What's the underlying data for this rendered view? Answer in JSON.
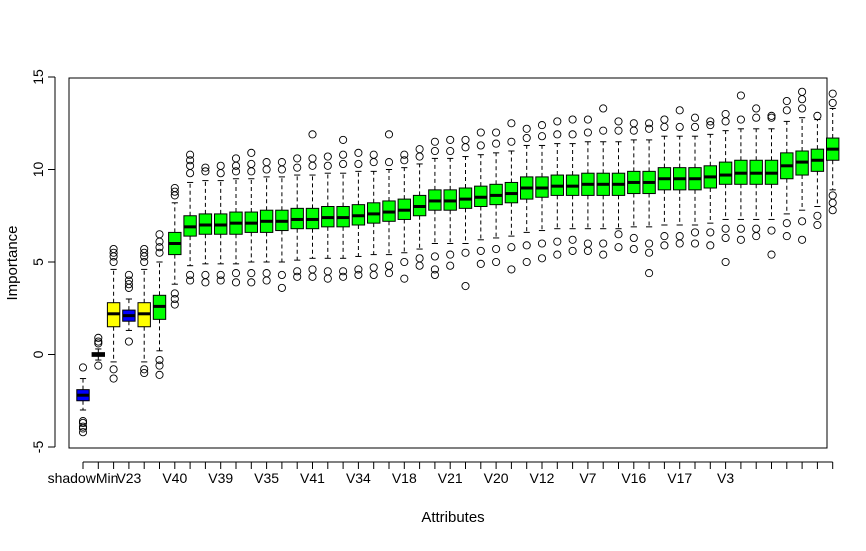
{
  "chart_data": {
    "type": "boxplot",
    "title": "",
    "xlabel": "Attributes",
    "ylabel": "Importance",
    "ylim": [
      -5,
      15
    ],
    "yticks": [
      -5,
      0,
      5,
      10,
      15
    ],
    "grid": false,
    "legend": "none",
    "colors": {
      "shadow": "#0000ff",
      "tentative": "#ffff00",
      "confirmed": "#00ff00",
      "outline": "#000000"
    },
    "x_tick_labels": [
      "shadowMin",
      "V23",
      "V40",
      "V39",
      "V35",
      "V41",
      "V34",
      "V18",
      "V21",
      "V20",
      "V12",
      "V7",
      "V16",
      "V17",
      "V3"
    ],
    "x_tick_positions": [
      1,
      4,
      7,
      10,
      13,
      16,
      19,
      22,
      25,
      28,
      31,
      34,
      37,
      40,
      43
    ],
    "boxes": [
      {
        "pos": 1,
        "status": "shadow",
        "q1": -2.5,
        "med": -2.2,
        "q3": -1.9,
        "lo": -3.0,
        "hi": -1.3,
        "out": [
          -3.6,
          -3.7,
          -3.9,
          -4.0,
          -4.2,
          -0.7
        ]
      },
      {
        "pos": 2,
        "status": "shadow",
        "q1": -0.1,
        "med": 0.0,
        "q3": 0.1,
        "lo": -0.3,
        "hi": 0.3,
        "out": [
          0.6,
          0.9,
          0.7,
          -0.6
        ]
      },
      {
        "pos": 3,
        "status": "tentative",
        "q1": 1.5,
        "med": 2.2,
        "q3": 2.8,
        "lo": -0.4,
        "hi": 4.6,
        "out": [
          5.0,
          5.3,
          5.5,
          5.7,
          -0.8,
          -1.3
        ]
      },
      {
        "pos": 4,
        "status": "shadow",
        "q1": 1.8,
        "med": 2.1,
        "q3": 2.4,
        "lo": 1.3,
        "hi": 3.0,
        "out": [
          3.6,
          3.8,
          4.0,
          4.3,
          0.7
        ]
      },
      {
        "pos": 5,
        "status": "tentative",
        "q1": 1.5,
        "med": 2.2,
        "q3": 2.8,
        "lo": -0.4,
        "hi": 4.6,
        "out": [
          5.0,
          5.3,
          5.5,
          5.7,
          -0.8,
          -1.0
        ]
      },
      {
        "pos": 6,
        "status": "confirmed",
        "q1": 1.9,
        "med": 2.6,
        "q3": 3.2,
        "lo": 0.2,
        "hi": 5.0,
        "out": [
          5.5,
          5.8,
          6.1,
          6.5,
          -0.3,
          -0.6,
          -1.1
        ]
      },
      {
        "pos": 7,
        "status": "confirmed",
        "q1": 5.4,
        "med": 6.0,
        "q3": 6.6,
        "lo": 3.8,
        "hi": 8.2,
        "out": [
          8.6,
          8.8,
          9.0,
          3.3,
          3.0,
          2.7
        ]
      },
      {
        "pos": 8,
        "status": "confirmed",
        "q1": 6.4,
        "med": 6.9,
        "q3": 7.5,
        "lo": 4.8,
        "hi": 9.3,
        "out": [
          9.8,
          10.2,
          10.5,
          10.8,
          4.3,
          4.0
        ]
      },
      {
        "pos": 9,
        "status": "confirmed",
        "q1": 6.5,
        "med": 7.0,
        "q3": 7.6,
        "lo": 4.9,
        "hi": 9.4,
        "out": [
          9.9,
          10.1,
          4.3,
          3.9
        ]
      },
      {
        "pos": 10,
        "status": "confirmed",
        "q1": 6.5,
        "med": 7.0,
        "q3": 7.6,
        "lo": 4.9,
        "hi": 9.4,
        "out": [
          9.8,
          10.2,
          4.3,
          4.0
        ]
      },
      {
        "pos": 11,
        "status": "confirmed",
        "q1": 6.5,
        "med": 7.1,
        "q3": 7.7,
        "lo": 4.9,
        "hi": 9.5,
        "out": [
          9.9,
          10.2,
          10.6,
          4.4,
          3.9
        ]
      },
      {
        "pos": 12,
        "status": "confirmed",
        "q1": 6.6,
        "med": 7.1,
        "q3": 7.7,
        "lo": 5.0,
        "hi": 9.5,
        "out": [
          9.9,
          10.3,
          10.9,
          4.4,
          3.9
        ]
      },
      {
        "pos": 13,
        "status": "confirmed",
        "q1": 6.6,
        "med": 7.2,
        "q3": 7.8,
        "lo": 5.0,
        "hi": 9.6,
        "out": [
          10.0,
          10.4,
          4.4,
          4.0
        ]
      },
      {
        "pos": 14,
        "status": "confirmed",
        "q1": 6.7,
        "med": 7.2,
        "q3": 7.8,
        "lo": 5.0,
        "hi": 9.6,
        "out": [
          10.0,
          10.4,
          4.3,
          3.6
        ]
      },
      {
        "pos": 15,
        "status": "confirmed",
        "q1": 6.8,
        "med": 7.3,
        "q3": 7.9,
        "lo": 5.1,
        "hi": 9.7,
        "out": [
          10.1,
          10.6,
          4.5,
          4.2
        ]
      },
      {
        "pos": 16,
        "status": "confirmed",
        "q1": 6.8,
        "med": 7.3,
        "q3": 7.9,
        "lo": 5.2,
        "hi": 9.7,
        "out": [
          10.2,
          10.6,
          11.9,
          4.6,
          4.2
        ]
      },
      {
        "pos": 17,
        "status": "confirmed",
        "q1": 6.9,
        "med": 7.4,
        "q3": 8.0,
        "lo": 5.2,
        "hi": 9.8,
        "out": [
          10.2,
          10.7,
          4.5,
          4.1
        ]
      },
      {
        "pos": 18,
        "status": "confirmed",
        "q1": 6.9,
        "med": 7.4,
        "q3": 8.0,
        "lo": 5.2,
        "hi": 9.8,
        "out": [
          10.3,
          10.8,
          11.6,
          4.5,
          4.2
        ]
      },
      {
        "pos": 19,
        "status": "confirmed",
        "q1": 7.0,
        "med": 7.5,
        "q3": 8.1,
        "lo": 5.3,
        "hi": 9.9,
        "out": [
          10.3,
          10.9,
          4.6,
          4.3
        ]
      },
      {
        "pos": 20,
        "status": "confirmed",
        "q1": 7.1,
        "med": 7.6,
        "q3": 8.2,
        "lo": 5.4,
        "hi": 9.9,
        "out": [
          10.4,
          10.8,
          4.7,
          4.3
        ]
      },
      {
        "pos": 21,
        "status": "confirmed",
        "q1": 7.2,
        "med": 7.7,
        "q3": 8.3,
        "lo": 5.4,
        "hi": 10.0,
        "out": [
          10.4,
          11.9,
          4.8,
          4.4
        ]
      },
      {
        "pos": 22,
        "status": "confirmed",
        "q1": 7.3,
        "med": 7.8,
        "q3": 8.4,
        "lo": 5.5,
        "hi": 10.1,
        "out": [
          10.5,
          10.8,
          5.0,
          4.1
        ]
      },
      {
        "pos": 23,
        "status": "confirmed",
        "q1": 7.5,
        "med": 8.0,
        "q3": 8.6,
        "lo": 5.7,
        "hi": 10.3,
        "out": [
          10.7,
          11.1,
          5.2,
          4.8
        ]
      },
      {
        "pos": 24,
        "status": "confirmed",
        "q1": 7.8,
        "med": 8.3,
        "q3": 8.9,
        "lo": 6.0,
        "hi": 10.6,
        "out": [
          11.0,
          11.5,
          5.3,
          4.6,
          4.3
        ]
      },
      {
        "pos": 25,
        "status": "confirmed",
        "q1": 7.8,
        "med": 8.3,
        "q3": 8.9,
        "lo": 6.0,
        "hi": 10.6,
        "out": [
          11.0,
          11.6,
          5.4,
          4.8
        ]
      },
      {
        "pos": 26,
        "status": "confirmed",
        "q1": 7.9,
        "med": 8.4,
        "q3": 9.0,
        "lo": 6.0,
        "hi": 10.7,
        "out": [
          11.2,
          11.6,
          5.5,
          3.7
        ]
      },
      {
        "pos": 27,
        "status": "confirmed",
        "q1": 8.0,
        "med": 8.5,
        "q3": 9.1,
        "lo": 6.2,
        "hi": 10.8,
        "out": [
          11.3,
          12.0,
          5.6,
          4.9
        ]
      },
      {
        "pos": 28,
        "status": "confirmed",
        "q1": 8.1,
        "med": 8.6,
        "q3": 9.2,
        "lo": 6.3,
        "hi": 10.9,
        "out": [
          11.4,
          12.0,
          5.7,
          5.0
        ]
      },
      {
        "pos": 29,
        "status": "confirmed",
        "q1": 8.2,
        "med": 8.7,
        "q3": 9.3,
        "lo": 6.4,
        "hi": 11.0,
        "out": [
          11.5,
          12.5,
          5.8,
          4.6
        ]
      },
      {
        "pos": 30,
        "status": "confirmed",
        "q1": 8.4,
        "med": 9.0,
        "q3": 9.6,
        "lo": 6.6,
        "hi": 11.3,
        "out": [
          11.7,
          12.2,
          5.9,
          5.0
        ]
      },
      {
        "pos": 31,
        "status": "confirmed",
        "q1": 8.5,
        "med": 9.0,
        "q3": 9.6,
        "lo": 6.7,
        "hi": 11.3,
        "out": [
          11.8,
          12.4,
          6.0,
          5.2
        ]
      },
      {
        "pos": 32,
        "status": "confirmed",
        "q1": 8.6,
        "med": 9.1,
        "q3": 9.7,
        "lo": 6.8,
        "hi": 11.4,
        "out": [
          11.9,
          12.6,
          6.1,
          5.4
        ]
      },
      {
        "pos": 33,
        "status": "confirmed",
        "q1": 8.6,
        "med": 9.1,
        "q3": 9.7,
        "lo": 6.8,
        "hi": 11.4,
        "out": [
          11.9,
          12.7,
          6.2,
          5.6
        ]
      },
      {
        "pos": 34,
        "status": "confirmed",
        "q1": 8.6,
        "med": 9.2,
        "q3": 9.8,
        "lo": 6.8,
        "hi": 11.5,
        "out": [
          12.0,
          12.7,
          6.0,
          5.6
        ]
      },
      {
        "pos": 35,
        "status": "confirmed",
        "q1": 8.6,
        "med": 9.2,
        "q3": 9.8,
        "lo": 6.8,
        "hi": 11.5,
        "out": [
          12.1,
          13.3,
          6.0,
          5.4
        ]
      },
      {
        "pos": 36,
        "status": "confirmed",
        "q1": 8.6,
        "med": 9.2,
        "q3": 9.8,
        "lo": 6.8,
        "hi": 11.5,
        "out": [
          12.1,
          12.6,
          6.5,
          5.8
        ]
      },
      {
        "pos": 37,
        "status": "confirmed",
        "q1": 8.7,
        "med": 9.3,
        "q3": 9.9,
        "lo": 6.9,
        "hi": 11.6,
        "out": [
          12.1,
          12.5,
          6.3,
          5.7
        ]
      },
      {
        "pos": 38,
        "status": "confirmed",
        "q1": 8.7,
        "med": 9.3,
        "q3": 9.9,
        "lo": 6.9,
        "hi": 11.6,
        "out": [
          12.2,
          12.5,
          6.0,
          5.5,
          4.4
        ]
      },
      {
        "pos": 39,
        "status": "confirmed",
        "q1": 8.9,
        "med": 9.5,
        "q3": 10.1,
        "lo": 7.0,
        "hi": 11.8,
        "out": [
          12.3,
          12.7,
          6.4,
          5.9
        ]
      },
      {
        "pos": 40,
        "status": "confirmed",
        "q1": 8.9,
        "med": 9.5,
        "q3": 10.1,
        "lo": 7.0,
        "hi": 11.8,
        "out": [
          12.3,
          13.2,
          6.4,
          6.0
        ]
      },
      {
        "pos": 41,
        "status": "confirmed",
        "q1": 8.9,
        "med": 9.5,
        "q3": 10.1,
        "lo": 7.0,
        "hi": 11.8,
        "out": [
          12.3,
          12.8,
          6.6,
          6.0
        ]
      },
      {
        "pos": 42,
        "status": "confirmed",
        "q1": 9.0,
        "med": 9.6,
        "q3": 10.2,
        "lo": 7.1,
        "hi": 11.9,
        "out": [
          12.4,
          12.6,
          6.6,
          5.9
        ]
      },
      {
        "pos": 43,
        "status": "confirmed",
        "q1": 9.2,
        "med": 9.7,
        "q3": 10.4,
        "lo": 7.3,
        "hi": 12.1,
        "out": [
          12.6,
          13.0,
          6.8,
          6.3,
          5.0
        ]
      },
      {
        "pos": 44,
        "status": "confirmed",
        "q1": 9.2,
        "med": 9.8,
        "q3": 10.5,
        "lo": 7.3,
        "hi": 12.2,
        "out": [
          12.7,
          14.0,
          6.8,
          6.2
        ]
      },
      {
        "pos": 45,
        "status": "confirmed",
        "q1": 9.2,
        "med": 9.8,
        "q3": 10.5,
        "lo": 7.3,
        "hi": 12.2,
        "out": [
          12.8,
          13.3,
          6.8,
          6.4
        ]
      },
      {
        "pos": 46,
        "status": "confirmed",
        "q1": 9.2,
        "med": 9.8,
        "q3": 10.5,
        "lo": 7.3,
        "hi": 12.2,
        "out": [
          12.8,
          12.9,
          6.7,
          5.4
        ]
      },
      {
        "pos": 47,
        "status": "confirmed",
        "q1": 9.5,
        "med": 10.2,
        "q3": 10.9,
        "lo": 7.6,
        "hi": 12.6,
        "out": [
          13.2,
          13.7,
          7.1,
          6.4
        ]
      },
      {
        "pos": 48,
        "status": "confirmed",
        "q1": 9.7,
        "med": 10.4,
        "q3": 11.0,
        "lo": 7.8,
        "hi": 12.8,
        "out": [
          13.3,
          13.8,
          14.2,
          7.2,
          6.2
        ]
      },
      {
        "pos": 49,
        "status": "confirmed",
        "q1": 9.9,
        "med": 10.5,
        "q3": 11.1,
        "lo": 8.0,
        "hi": 12.7,
        "out": [
          12.9,
          7.5,
          7.0
        ]
      },
      {
        "pos": 50,
        "status": "confirmed",
        "q1": 10.5,
        "med": 11.1,
        "q3": 11.7,
        "lo": 8.9,
        "hi": 13.3,
        "out": [
          13.6,
          14.1,
          8.6,
          8.2,
          7.8
        ]
      }
    ]
  }
}
